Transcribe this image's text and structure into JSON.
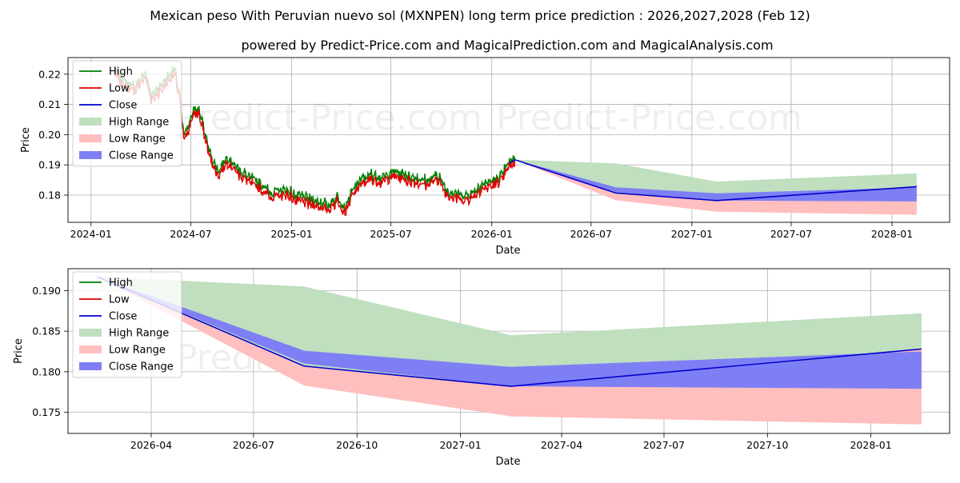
{
  "title": "Mexican peso With Peruvian nuevo sol (MXNPEN) long term price prediction : 2026,2027,2028 (Feb 12)",
  "subtitle": "powered by Predict-Price.com and MagicalPrediction.com and MagicalAnalysis.com",
  "watermark": "Predict-Price.com",
  "colors": {
    "high": "#008000",
    "low": "#e00000",
    "close": "#0000cc",
    "high_range": "#bfdfbf",
    "low_range": "#ffbfbf",
    "close_range": "#7f7ff5",
    "grid": "#b0b0b0"
  },
  "legend": [
    "High",
    "Low",
    "Close",
    "High Range",
    "Low Range",
    "Close Range"
  ],
  "chart_data": [
    {
      "type": "line",
      "panel": "top",
      "xlabel": "Date",
      "ylabel": "Price",
      "x_ticks": [
        "2024-01",
        "2024-07",
        "2025-01",
        "2025-07",
        "2026-01",
        "2026-07",
        "2027-01",
        "2027-07",
        "2028-01"
      ],
      "y_ticks": [
        "0.18",
        "0.19",
        "0.20",
        "0.21",
        "0.22"
      ],
      "xlim": [
        "2023-11-20",
        "2028-04-15"
      ],
      "ylim": [
        0.171,
        0.2255
      ],
      "history_anchors": [
        [
          "2024-02-12",
          0.221
        ],
        [
          "2024-03-01",
          0.217
        ],
        [
          "2024-03-20",
          0.215
        ],
        [
          "2024-04-10",
          0.22
        ],
        [
          "2024-04-20",
          0.212
        ],
        [
          "2024-05-15",
          0.217
        ],
        [
          "2024-06-01",
          0.221
        ],
        [
          "2024-06-10",
          0.213
        ],
        [
          "2024-06-18",
          0.199
        ],
        [
          "2024-06-28",
          0.203
        ],
        [
          "2024-07-05",
          0.207
        ],
        [
          "2024-07-15",
          0.208
        ],
        [
          "2024-07-25",
          0.201
        ],
        [
          "2024-08-05",
          0.193
        ],
        [
          "2024-08-20",
          0.187
        ],
        [
          "2024-09-05",
          0.192
        ],
        [
          "2024-09-25",
          0.188
        ],
        [
          "2024-10-15",
          0.185
        ],
        [
          "2024-11-05",
          0.183
        ],
        [
          "2024-11-25",
          0.18
        ],
        [
          "2024-12-20",
          0.181
        ],
        [
          "2025-01-10",
          0.179
        ],
        [
          "2025-02-01",
          0.178
        ],
        [
          "2025-02-20",
          0.177
        ],
        [
          "2025-03-10",
          0.176
        ],
        [
          "2025-03-25",
          0.179
        ],
        [
          "2025-04-08",
          0.175
        ],
        [
          "2025-04-20",
          0.18
        ],
        [
          "2025-05-05",
          0.184
        ],
        [
          "2025-05-25",
          0.186
        ],
        [
          "2025-06-15",
          0.185
        ],
        [
          "2025-07-05",
          0.187
        ],
        [
          "2025-07-25",
          0.186
        ],
        [
          "2025-08-15",
          0.185
        ],
        [
          "2025-09-05",
          0.184
        ],
        [
          "2025-09-25",
          0.186
        ],
        [
          "2025-10-10",
          0.181
        ],
        [
          "2025-10-25",
          0.18
        ],
        [
          "2025-11-10",
          0.179
        ],
        [
          "2025-11-25",
          0.18
        ],
        [
          "2025-12-15",
          0.183
        ],
        [
          "2026-01-05",
          0.184
        ],
        [
          "2026-01-20",
          0.186
        ],
        [
          "2026-02-01",
          0.19
        ],
        [
          "2026-02-12",
          0.1917
        ]
      ],
      "forecast_dates": [
        "2026-02-12",
        "2026-08-15",
        "2027-02-15",
        "2028-02-15"
      ],
      "close": [
        0.1917,
        0.1807,
        0.1782,
        0.1828
      ],
      "high_range": [
        0.1917,
        0.1905,
        0.1845,
        0.1872
      ],
      "low_range": [
        0.1917,
        0.1783,
        0.1745,
        0.1735
      ],
      "close_range_upper": [
        0.1917,
        0.1826,
        0.1806,
        0.1825
      ],
      "close_range_lower": [
        0.1917,
        0.181,
        0.1782,
        0.1779
      ]
    },
    {
      "type": "area",
      "panel": "bottom",
      "xlabel": "Date",
      "ylabel": "Price",
      "x_ticks": [
        "2026-04",
        "2026-07",
        "2026-10",
        "2027-01",
        "2027-04",
        "2027-07",
        "2027-10",
        "2028-01"
      ],
      "y_ticks": [
        "0.175",
        "0.180",
        "0.185",
        "0.190"
      ],
      "xlim": [
        "2026-01-17",
        "2028-03-11"
      ],
      "ylim": [
        0.1724,
        0.1927
      ],
      "forecast_dates": [
        "2026-02-12",
        "2026-08-15",
        "2027-02-15",
        "2028-02-15"
      ],
      "close": [
        0.1917,
        0.1807,
        0.1782,
        0.1828
      ],
      "high_range": [
        0.1917,
        0.1905,
        0.1845,
        0.1872
      ],
      "low_range": [
        0.1917,
        0.1783,
        0.1745,
        0.1735
      ],
      "close_range_upper": [
        0.1917,
        0.1826,
        0.1806,
        0.1825
      ],
      "close_range_lower": [
        0.1917,
        0.181,
        0.1782,
        0.1779
      ]
    }
  ]
}
